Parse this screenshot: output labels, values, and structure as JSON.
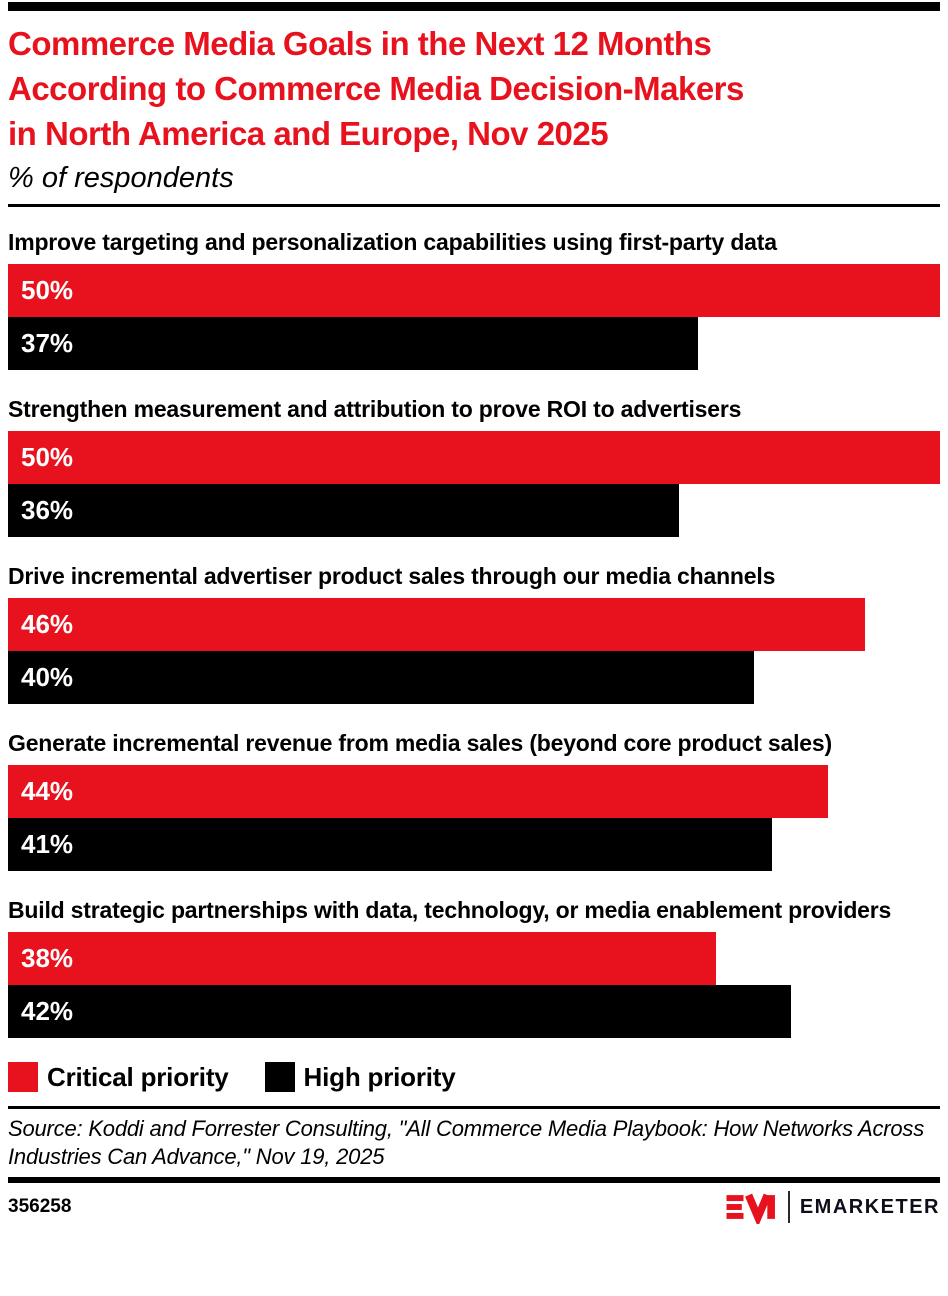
{
  "colors": {
    "accent_red": "#E8121E",
    "black": "#000000"
  },
  "header": {
    "title": "Commerce Media Goals in the Next 12 Months According to Commerce Media Decision-Makers in North America and Europe, Nov 2025",
    "title_lines": [
      "Commerce Media Goals in the Next 12 Months",
      "According to Commerce Media Decision-Makers",
      "in North America and Europe, Nov 2025"
    ],
    "subtitle": "% of respondents"
  },
  "chart_data": {
    "type": "bar",
    "orientation": "horizontal",
    "title": "Commerce Media Goals in the Next 12 Months According to Commerce Media Decision-Makers in North America and Europe, Nov 2025",
    "subtitle": "% of respondents",
    "categories": [
      "Improve targeting and personalization capabilities using first-party data",
      "Strengthen measurement and attribution to prove ROI to advertisers",
      "Drive incremental advertiser product sales through our media channels",
      "Generate incremental revenue from media sales (beyond core product sales)",
      "Build strategic partnerships with data, technology, or media enablement providers"
    ],
    "series": [
      {
        "name": "Critical priority",
        "color": "#E8121E",
        "values": [
          50,
          50,
          46,
          44,
          38
        ]
      },
      {
        "name": "High priority",
        "color": "#000000",
        "values": [
          37,
          36,
          40,
          41,
          42
        ]
      }
    ],
    "value_suffix": "%",
    "axis_max": 50,
    "grid": false,
    "legend_position": "bottom"
  },
  "source": {
    "text": "Source: Koddi and Forrester Consulting, \"All Commerce Media Playbook: How Networks Across Industries Can Advance,\" Nov 19, 2025"
  },
  "footer": {
    "chart_id": "356258",
    "brand_name": "EMARKETER"
  }
}
